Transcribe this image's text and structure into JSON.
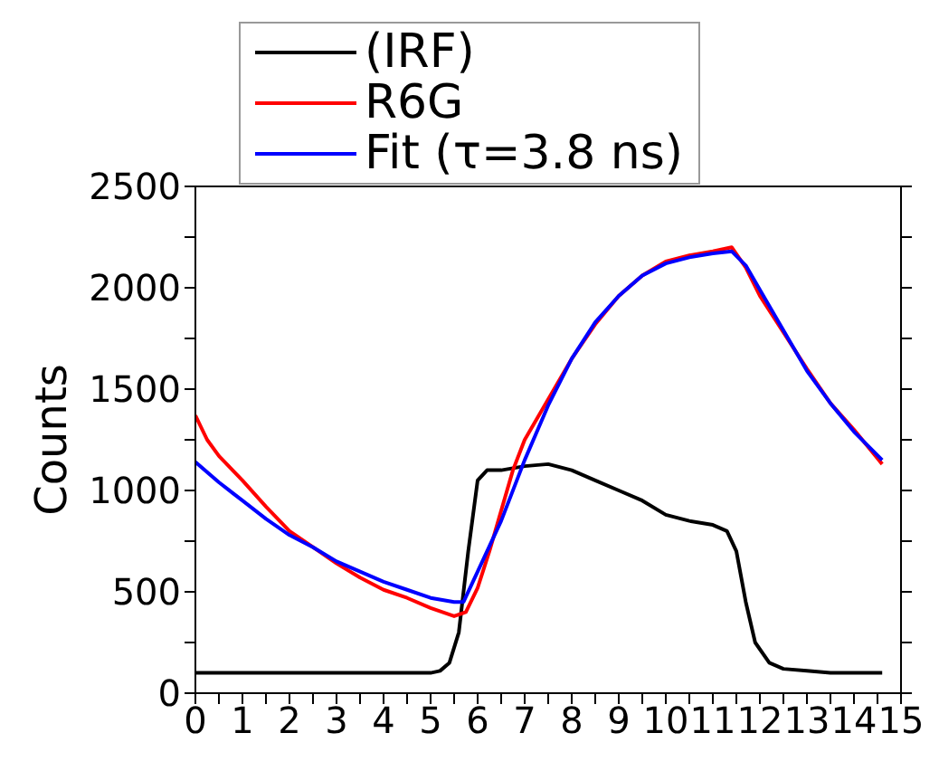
{
  "chart_data": {
    "type": "line",
    "ylabel": "Counts",
    "legend": "top",
    "grid": false,
    "marker": "none",
    "line_style": "solid",
    "xlim": [
      0,
      15
    ],
    "xticks": [
      0,
      {
        "value": 0.5,
        "label": null
      },
      1,
      {
        "value": 1.5,
        "label": null
      },
      2,
      {
        "value": 2.5,
        "label": null
      },
      3,
      {
        "value": 3.5,
        "label": null
      },
      4,
      {
        "value": 4.5,
        "label": null
      },
      5,
      {
        "value": 5.5,
        "label": null
      },
      6,
      {
        "value": 6.5,
        "label": null
      },
      7,
      {
        "value": 7.5,
        "label": null
      },
      8,
      {
        "value": 8.5,
        "label": null
      },
      9,
      {
        "value": 9.5,
        "label": null
      },
      10,
      {
        "value": 10.5,
        "label": null
      },
      11,
      {
        "value": 11.5,
        "label": null
      },
      12,
      {
        "value": 12.5,
        "label": null
      },
      13,
      {
        "value": 13.5,
        "label": null
      },
      14,
      {
        "value": 14.5,
        "label": null
      },
      15
    ],
    "ylim": [
      0,
      2500
    ],
    "yticks": [
      0,
      {
        "value": 250,
        "label": null
      },
      500,
      {
        "value": 750,
        "label": null
      },
      1000,
      {
        "value": 1250,
        "label": null
      },
      1500,
      {
        "value": 1750,
        "label": null
      },
      2000,
      {
        "value": 2250,
        "label": null
      },
      2500
    ],
    "series": [
      {
        "name": "(IRF)",
        "color": "#000000",
        "x": [
          0,
          1,
          2,
          3,
          4,
          5,
          5.2,
          5.4,
          5.6,
          5.8,
          6,
          6.2,
          6.5,
          7,
          7.5,
          8,
          8.5,
          9,
          9.5,
          10,
          10.5,
          11,
          11.3,
          11.5,
          11.7,
          11.9,
          12.2,
          12.5,
          13,
          13.5,
          14,
          14.6
        ],
        "values": [
          100,
          100,
          100,
          100,
          100,
          100,
          110,
          150,
          300,
          700,
          1050,
          1100,
          1100,
          1120,
          1130,
          1100,
          1050,
          1000,
          950,
          880,
          850,
          830,
          800,
          700,
          450,
          250,
          150,
          120,
          110,
          100,
          100,
          100
        ]
      },
      {
        "name": "R6G",
        "color": "#ff0000",
        "x": [
          0,
          0.25,
          0.5,
          1,
          1.5,
          2,
          2.5,
          3,
          3.5,
          4,
          4.5,
          5,
          5.5,
          5.75,
          6,
          6.25,
          6.5,
          6.75,
          7,
          7.5,
          8,
          8.5,
          9,
          9.5,
          10,
          10.5,
          11,
          11.4,
          11.7,
          12,
          12.5,
          13,
          13.5,
          14,
          14.6
        ],
        "values": [
          1370,
          1250,
          1170,
          1050,
          920,
          800,
          720,
          640,
          570,
          510,
          470,
          420,
          380,
          400,
          520,
          700,
          900,
          1100,
          1250,
          1450,
          1650,
          1820,
          1960,
          2060,
          2130,
          2160,
          2180,
          2200,
          2100,
          1960,
          1780,
          1600,
          1430,
          1300,
          1130
        ]
      },
      {
        "name": "Fit (τ=3.8 ns)",
        "color": "#0000ff",
        "x": [
          0,
          0.5,
          1,
          1.5,
          2,
          2.5,
          3,
          3.5,
          4,
          4.5,
          5,
          5.5,
          5.7,
          6,
          6.5,
          7,
          7.5,
          8,
          8.5,
          9,
          9.5,
          10,
          10.5,
          11,
          11.4,
          11.7,
          12,
          12.5,
          13,
          13.5,
          14,
          14.6
        ],
        "values": [
          1140,
          1040,
          950,
          860,
          780,
          720,
          650,
          600,
          550,
          510,
          470,
          450,
          450,
          600,
          850,
          1150,
          1420,
          1650,
          1830,
          1960,
          2060,
          2120,
          2150,
          2170,
          2180,
          2110,
          1990,
          1790,
          1590,
          1430,
          1290,
          1150
        ]
      }
    ]
  }
}
